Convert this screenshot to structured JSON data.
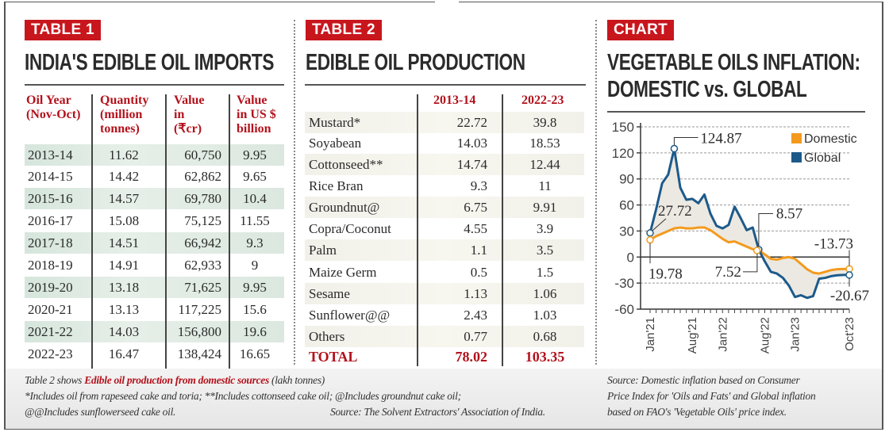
{
  "table1": {
    "tag": "TABLE 1",
    "title": "INDIA'S EDIBLE OIL IMPORTS",
    "headers": {
      "year": [
        "Oil Year",
        "(Nov-Oct)"
      ],
      "qty": [
        "Quantity",
        "(million",
        "tonnes)"
      ],
      "inr": [
        "Value",
        "in",
        "(₹cr)"
      ],
      "usd": [
        "Value",
        "in US $",
        "billion"
      ]
    },
    "rows": [
      {
        "year": "2013-14",
        "qty": "11.62",
        "inr": "60,750",
        "usd": "9.95"
      },
      {
        "year": "2014-15",
        "qty": "14.42",
        "inr": "62,862",
        "usd": "9.65"
      },
      {
        "year": "2015-16",
        "qty": "14.57",
        "inr": "69,780",
        "usd": "10.4"
      },
      {
        "year": "2016-17",
        "qty": "15.08",
        "inr": "75,125",
        "usd": "11.55"
      },
      {
        "year": "2017-18",
        "qty": "14.51",
        "inr": "66,942",
        "usd": "9.3"
      },
      {
        "year": "2018-19",
        "qty": "14.91",
        "inr": "62,933",
        "usd": "9"
      },
      {
        "year": "2019-20",
        "qty": "13.18",
        "inr": "71,625",
        "usd": "9.95"
      },
      {
        "year": "2020-21",
        "qty": "13.13",
        "inr": "117,225",
        "usd": "15.6"
      },
      {
        "year": "2021-22",
        "qty": "14.03",
        "inr": "156,800",
        "usd": "19.6"
      },
      {
        "year": "2022-23",
        "qty": "16.47",
        "inr": "138,424",
        "usd": "16.65"
      }
    ]
  },
  "table2": {
    "tag": "TABLE 2",
    "title": "EDIBLE OIL PRODUCTION",
    "headers": [
      "2013-14",
      "2022-23"
    ],
    "rows": [
      {
        "crop": "Mustard*",
        "a": "22.72",
        "b": "39.8"
      },
      {
        "crop": "Soyabean",
        "a": "14.03",
        "b": "18.53"
      },
      {
        "crop": "Cottonseed**",
        "a": "14.74",
        "b": "12.44"
      },
      {
        "crop": "Rice Bran",
        "a": "9.3",
        "b": "11"
      },
      {
        "crop": "Groundnut@",
        "a": "6.75",
        "b": "9.91"
      },
      {
        "crop": "Copra/Coconut",
        "a": "4.55",
        "b": "3.9"
      },
      {
        "crop": "Palm",
        "a": "1.1",
        "b": "3.5"
      },
      {
        "crop": "Maize Germ",
        "a": "0.5",
        "b": "1.5"
      },
      {
        "crop": "Sesame",
        "a": "1.13",
        "b": "1.06"
      },
      {
        "crop": "Sunflower@@",
        "a": "2.43",
        "b": "1.03"
      },
      {
        "crop": "Others",
        "a": "0.77",
        "b": "0.68"
      }
    ],
    "total": {
      "crop": "TOTAL",
      "a": "78.02",
      "b": "103.35"
    }
  },
  "notes": {
    "line1_prefix": "Table 2 shows ",
    "line1_bold": "Edible oil production from domestic sources",
    "line1_suffix": " (lakh tonnes)",
    "line2": "*Includes oil from rapeseed cake and toria; **Includes cottonseed cake oil; @Includes groundnut cake oil;",
    "line3": "@@Includes sunflowerseed cake oil.",
    "source": "Source: The Solvent Extractors' Association of India."
  },
  "chart": {
    "tag": "CHART",
    "title_line1": "VEGETABLE OILS INFLATION:",
    "title_line2": "DOMESTIC vs. GLOBAL",
    "source": [
      "Source: Domestic inflation based on Consumer",
      "Price Index for 'Oils and Fats' and Global inflation",
      "based on FAO's 'Vegetable Oils' price index."
    ]
  },
  "chart_data": {
    "type": "line",
    "title": "VEGETABLE OILS INFLATION: DOMESTIC vs. GLOBAL",
    "xlabel": "",
    "ylabel": "",
    "ylim": [
      -60,
      150
    ],
    "yticks": [
      "150",
      "120",
      "90",
      "60",
      "30",
      "0",
      "-30",
      "-60"
    ],
    "xtick_labels": [
      "Jan'21",
      "Aug'21",
      "Jan'22",
      "Aug'22",
      "Jan'23",
      "Oct'23"
    ],
    "grid": true,
    "legend_position": "top-right",
    "x": [
      "Jan'21",
      "Feb'21",
      "Mar'21",
      "Apr'21",
      "May'21",
      "Jun'21",
      "Jul'21",
      "Aug'21",
      "Sep'21",
      "Oct'21",
      "Nov'21",
      "Dec'21",
      "Jan'22",
      "Feb'22",
      "Mar'22",
      "Apr'22",
      "May'22",
      "Jun'22",
      "Jul'22",
      "Aug'22",
      "Sep'22",
      "Oct'22",
      "Nov'22",
      "Dec'22",
      "Jan'23",
      "Feb'23",
      "Mar'23",
      "Apr'23",
      "May'23",
      "Jun'23",
      "Jul'23",
      "Aug'23",
      "Sep'23",
      "Oct'23"
    ],
    "series": [
      {
        "name": "Domestic",
        "color": "#f39a1e",
        "values": [
          19.78,
          24,
          27,
          30,
          33,
          34,
          33,
          33,
          34,
          34,
          31,
          26,
          21,
          17,
          18,
          15,
          12,
          9,
          7.52,
          3,
          -2,
          -3,
          -1,
          0,
          -2,
          -8,
          -14,
          -18,
          -19,
          -17,
          -15,
          -14,
          -13.73,
          -13.73
        ]
      },
      {
        "name": "Global",
        "color": "#1d5a8a",
        "values": [
          27.72,
          55,
          85,
          95,
          124.87,
          80,
          66,
          67,
          62,
          72,
          50,
          36,
          33,
          37,
          58,
          45,
          31,
          34,
          8.57,
          -5,
          -17,
          -19,
          -24,
          -33,
          -46,
          -44,
          -47,
          -45,
          -25,
          -24,
          -22,
          -21,
          -20.67,
          -20.67
        ]
      }
    ],
    "annotations": [
      {
        "text": "124.87",
        "series": "Global",
        "x": "May'21"
      },
      {
        "text": "27.72",
        "series": "Global",
        "x": "Jan'21"
      },
      {
        "text": "19.78",
        "series": "Domestic",
        "x": "Jan'21"
      },
      {
        "text": "8.57",
        "series": "Global",
        "x": "Jul'22"
      },
      {
        "text": "7.52",
        "series": "Domestic",
        "x": "Jul'22"
      },
      {
        "text": "-13.73",
        "series": "Domestic",
        "x": "Oct'23"
      },
      {
        "text": "-20.67",
        "series": "Global",
        "x": "Oct'23"
      }
    ]
  }
}
